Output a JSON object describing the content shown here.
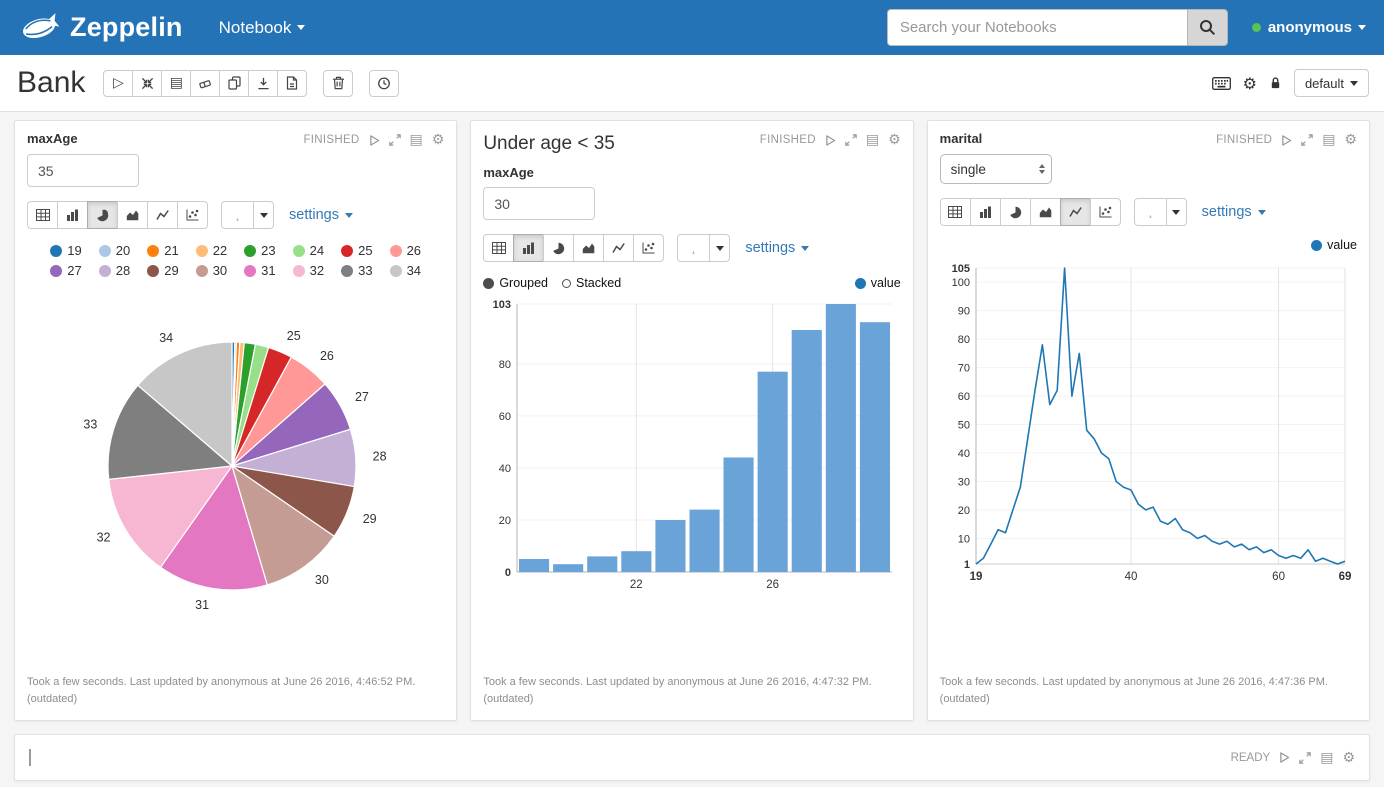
{
  "colors": {
    "navbar_bg": "#2573b7",
    "accent": "#337ab7",
    "status_green": "#53c653",
    "series": "#1f77b4",
    "bar": "#6aa3d8"
  },
  "icons": {
    "play": "▷",
    "book": "▤",
    "gear": "⚙"
  },
  "navbar": {
    "brand": "Zeppelin",
    "notebook_menu": "Notebook",
    "search_placeholder": "Search your Notebooks",
    "user": "anonymous"
  },
  "note_toolbar": {
    "title": "Bank",
    "interpreter": "default"
  },
  "paragraphs": [
    {
      "status": "FINISHED",
      "form_label": "maxAge",
      "input_value": "35",
      "settings_label": "settings",
      "footer": "Took a few seconds. Last updated by anonymous at June 26 2016, 4:46:52 PM.",
      "footer_note": "(outdated)"
    },
    {
      "title": "Under age < 35",
      "status": "FINISHED",
      "form_label": "maxAge",
      "input_value": "30",
      "settings_label": "settings",
      "controls": {
        "grouped": "Grouped",
        "stacked": "Stacked"
      },
      "legend": "value",
      "footer": "Took a few seconds. Last updated by anonymous at June 26 2016, 4:47:32 PM.",
      "footer_note": "(outdated)"
    },
    {
      "status": "FINISHED",
      "form_label": "marital",
      "select_value": "single",
      "settings_label": "settings",
      "legend": "value",
      "footer": "Took a few seconds. Last updated by anonymous at June 26 2016, 4:47:36 PM.",
      "footer_note": "(outdated)"
    }
  ],
  "empty_paragraph": {
    "status": "READY"
  },
  "chart_data": [
    {
      "type": "pie",
      "title": "",
      "categories": [
        "19",
        "20",
        "21",
        "22",
        "23",
        "24",
        "25",
        "26",
        "27",
        "28",
        "29",
        "30",
        "31",
        "32",
        "33",
        "34"
      ],
      "values": [
        5,
        3,
        6,
        8,
        20,
        24,
        44,
        77,
        93,
        103,
        96,
        150,
        199,
        187,
        180,
        190
      ],
      "colors": [
        "#1f77b4",
        "#aec7e8",
        "#ff7f0e",
        "#ffbb78",
        "#2ca02c",
        "#98df8a",
        "#d62728",
        "#ff9896",
        "#9467bd",
        "#c5b0d5",
        "#8c564b",
        "#c49c94",
        "#e377c2",
        "#f7b6d2",
        "#7f7f7f",
        "#c7c7c7"
      ],
      "legend_position": "top",
      "label_threshold": 0.025
    },
    {
      "type": "bar",
      "title": "",
      "categories": [
        "19",
        "20",
        "21",
        "22",
        "23",
        "24",
        "25",
        "26",
        "27",
        "28",
        "29"
      ],
      "series": [
        {
          "name": "value",
          "values": [
            5,
            3,
            6,
            8,
            20,
            24,
            44,
            77,
            93,
            103,
            96
          ]
        }
      ],
      "xticks_shown": [
        "22",
        "26"
      ],
      "yticks": [
        0,
        20,
        40,
        60,
        80,
        103
      ],
      "ylim": [
        0,
        103
      ],
      "mode": "Grouped",
      "color": "#6aa3d8",
      "grid": true
    },
    {
      "type": "line",
      "title": "",
      "series_name": "value",
      "x": [
        19,
        20,
        21,
        22,
        23,
        24,
        25,
        26,
        27,
        28,
        29,
        30,
        31,
        32,
        33,
        34,
        35,
        36,
        37,
        38,
        39,
        40,
        41,
        42,
        43,
        44,
        45,
        46,
        47,
        48,
        49,
        50,
        51,
        52,
        53,
        54,
        55,
        56,
        57,
        58,
        59,
        60,
        61,
        62,
        63,
        64,
        65,
        66,
        67,
        68,
        69
      ],
      "values": [
        1,
        3,
        8,
        13,
        12,
        20,
        28,
        45,
        62,
        78,
        57,
        62,
        105,
        60,
        75,
        48,
        45,
        40,
        38,
        30,
        28,
        27,
        22,
        20,
        21,
        16,
        15,
        17,
        13,
        12,
        10,
        11,
        9,
        8,
        9,
        7,
        8,
        6,
        7,
        5,
        6,
        4,
        3,
        4,
        3,
        6,
        2,
        3,
        2,
        1,
        2
      ],
      "xticks": [
        19,
        40,
        60,
        69
      ],
      "yticks": [
        1,
        10,
        20,
        30,
        40,
        50,
        60,
        70,
        80,
        90,
        100,
        105
      ],
      "ylim": [
        1,
        105
      ],
      "color": "#1f77b4",
      "grid": true
    }
  ]
}
